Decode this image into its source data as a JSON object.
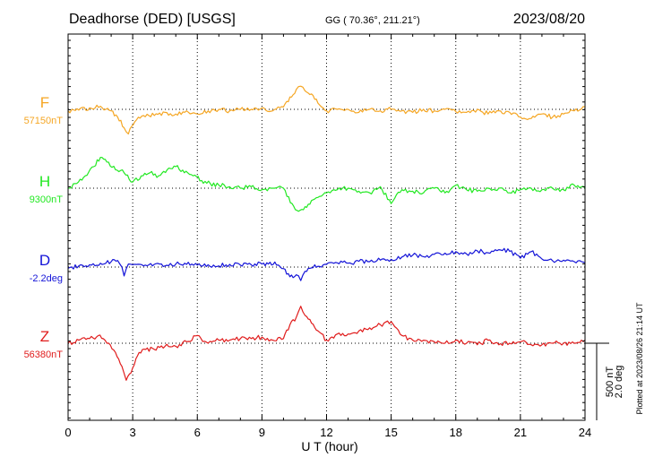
{
  "header": {
    "station": "Deadhorse (DED)  [USGS]",
    "coords": "GG ( 70.36°, 211.21°)",
    "date": "2023/08/20"
  },
  "footer": {
    "plotted": "Plotted at 2023/08/26 21:14 UT",
    "scale_nt": "500 nT",
    "scale_deg": "2.0 deg"
  },
  "chart_data": {
    "type": "line",
    "title": "Deadhorse (DED)  [USGS]",
    "xlabel": "U T (hour)",
    "ylabel": "",
    "xlim": [
      0,
      24
    ],
    "xticks": [
      0,
      3,
      6,
      9,
      12,
      15,
      18,
      21,
      24
    ],
    "grid": true,
    "scale": {
      "nT": 500,
      "deg": 2.0
    },
    "series": [
      {
        "name": "F",
        "baseline_label": "57150nT",
        "baseline": 57150,
        "unit": "nT",
        "color": "#f5a623",
        "x": [
          0,
          0.5,
          1,
          1.5,
          2,
          2.3,
          2.6,
          2.8,
          3.1,
          3.5,
          4,
          4.5,
          5,
          5.5,
          6,
          6.5,
          7,
          7.5,
          8,
          8.5,
          9,
          9.5,
          10,
          10.3,
          10.6,
          10.8,
          11,
          11.3,
          11.6,
          12,
          12.5,
          13,
          13.5,
          14,
          14.5,
          15,
          15.5,
          16,
          16.5,
          17,
          17.5,
          18,
          18.5,
          19,
          19.5,
          20,
          20.5,
          21,
          21.5,
          22,
          22.5,
          23,
          23.5,
          24
        ],
        "values": [
          57140,
          57145,
          57160,
          57170,
          57140,
          57100,
          57030,
          56990,
          57070,
          57110,
          57110,
          57130,
          57120,
          57140,
          57120,
          57140,
          57150,
          57140,
          57150,
          57150,
          57160,
          57140,
          57165,
          57230,
          57280,
          57300,
          57270,
          57250,
          57190,
          57140,
          57150,
          57150,
          57130,
          57150,
          57140,
          57150,
          57140,
          57130,
          57150,
          57140,
          57150,
          57135,
          57130,
          57150,
          57120,
          57140,
          57130,
          57100,
          57090,
          57120,
          57100,
          57120,
          57140,
          57165
        ]
      },
      {
        "name": "H",
        "baseline_label": "9300nT",
        "baseline": 9300,
        "unit": "nT",
        "color": "#22e822",
        "x": [
          0,
          0.4,
          0.8,
          1.2,
          1.5,
          1.8,
          2.2,
          2.6,
          3,
          3.4,
          3.8,
          4.2,
          4.6,
          5,
          5.4,
          5.8,
          6.2,
          6.6,
          7,
          7.5,
          8,
          8.5,
          9,
          9.5,
          10,
          10.4,
          10.7,
          11,
          11.3,
          11.6,
          12,
          12.5,
          13,
          13.5,
          14,
          14.5,
          15,
          15.5,
          16,
          16.5,
          17,
          17.5,
          18,
          18.5,
          19,
          19.5,
          20,
          20.5,
          21,
          21.5,
          22,
          22.5,
          23,
          23.5,
          24
        ],
        "values": [
          9300,
          9330,
          9380,
          9440,
          9500,
          9470,
          9420,
          9400,
          9340,
          9380,
          9400,
          9380,
          9420,
          9440,
          9400,
          9380,
          9350,
          9330,
          9320,
          9310,
          9300,
          9310,
          9290,
          9300,
          9300,
          9200,
          9150,
          9180,
          9220,
          9240,
          9270,
          9290,
          9300,
          9280,
          9270,
          9310,
          9200,
          9290,
          9280,
          9270,
          9300,
          9270,
          9320,
          9290,
          9280,
          9300,
          9300,
          9270,
          9290,
          9300,
          9290,
          9300,
          9290,
          9320,
          9300
        ]
      },
      {
        "name": "D",
        "baseline_label": "-2.2deg",
        "baseline": -2.2,
        "unit": "deg",
        "color": "#1414d8",
        "x": [
          0,
          0.5,
          1,
          1.5,
          2,
          2.3,
          2.5,
          2.6,
          2.8,
          3,
          3.5,
          4,
          4.5,
          5,
          5.5,
          6,
          6.5,
          7,
          7.5,
          8,
          8.5,
          9,
          9.3,
          9.6,
          10,
          10.3,
          10.6,
          10.8,
          11,
          11.3,
          11.6,
          12,
          12.5,
          13,
          13.5,
          14,
          14.5,
          15,
          15.5,
          16,
          16.5,
          17,
          17.5,
          18,
          18.5,
          19,
          19.5,
          20,
          20.5,
          21,
          21.5,
          22,
          22.5,
          23,
          23.5,
          24
        ],
        "values": [
          -2.23,
          -2.17,
          -2.14,
          -2.1,
          -2.06,
          -2.03,
          -2.2,
          -2.43,
          -2.12,
          -2.14,
          -2.17,
          -2.13,
          -2.17,
          -2.12,
          -2.13,
          -2.15,
          -2.14,
          -2.17,
          -2.13,
          -2.15,
          -2.14,
          -2.12,
          -2.12,
          -2.07,
          -2.24,
          -2.45,
          -2.4,
          -2.55,
          -2.31,
          -2.22,
          -2.18,
          -2.13,
          -2.09,
          -2.1,
          -2.05,
          -2.06,
          -2.02,
          -2.0,
          -1.94,
          -1.89,
          -1.93,
          -1.87,
          -1.84,
          -1.8,
          -1.86,
          -1.78,
          -1.83,
          -1.75,
          -1.79,
          -1.97,
          -1.8,
          -1.99,
          -2.04,
          -2.02,
          -2.06,
          -2.09
        ]
      },
      {
        "name": "Z",
        "baseline_label": "56380nT",
        "baseline": 56380,
        "unit": "nT",
        "color": "#e01c1c",
        "x": [
          0,
          0.5,
          1,
          1.4,
          1.8,
          2.2,
          2.5,
          2.7,
          3,
          3.3,
          3.6,
          4,
          4.5,
          5,
          5.5,
          6,
          6.5,
          7,
          7.5,
          8,
          8.5,
          9,
          9.5,
          10,
          10.3,
          10.6,
          10.8,
          11,
          11.3,
          11.6,
          12,
          12.5,
          13,
          13.5,
          14,
          14.5,
          15,
          15.5,
          16,
          16.5,
          17,
          17.5,
          18,
          18.5,
          19,
          19.5,
          20,
          20.5,
          21,
          21.5,
          22,
          22.5,
          23,
          23.5,
          24
        ],
        "values": [
          56380,
          56400,
          56410,
          56430,
          56380,
          56320,
          56230,
          56140,
          56220,
          56320,
          56340,
          56340,
          56360,
          56360,
          56390,
          56430,
          56380,
          56400,
          56400,
          56410,
          56410,
          56420,
          56400,
          56410,
          56500,
          56550,
          56620,
          56560,
          56510,
          56460,
          56400,
          56440,
          56440,
          56460,
          56480,
          56500,
          56520,
          56430,
          56400,
          56400,
          56390,
          56380,
          56400,
          56380,
          56370,
          56400,
          56370,
          56380,
          56390,
          56370,
          56370,
          56380,
          56380,
          56380,
          56400
        ]
      }
    ]
  }
}
